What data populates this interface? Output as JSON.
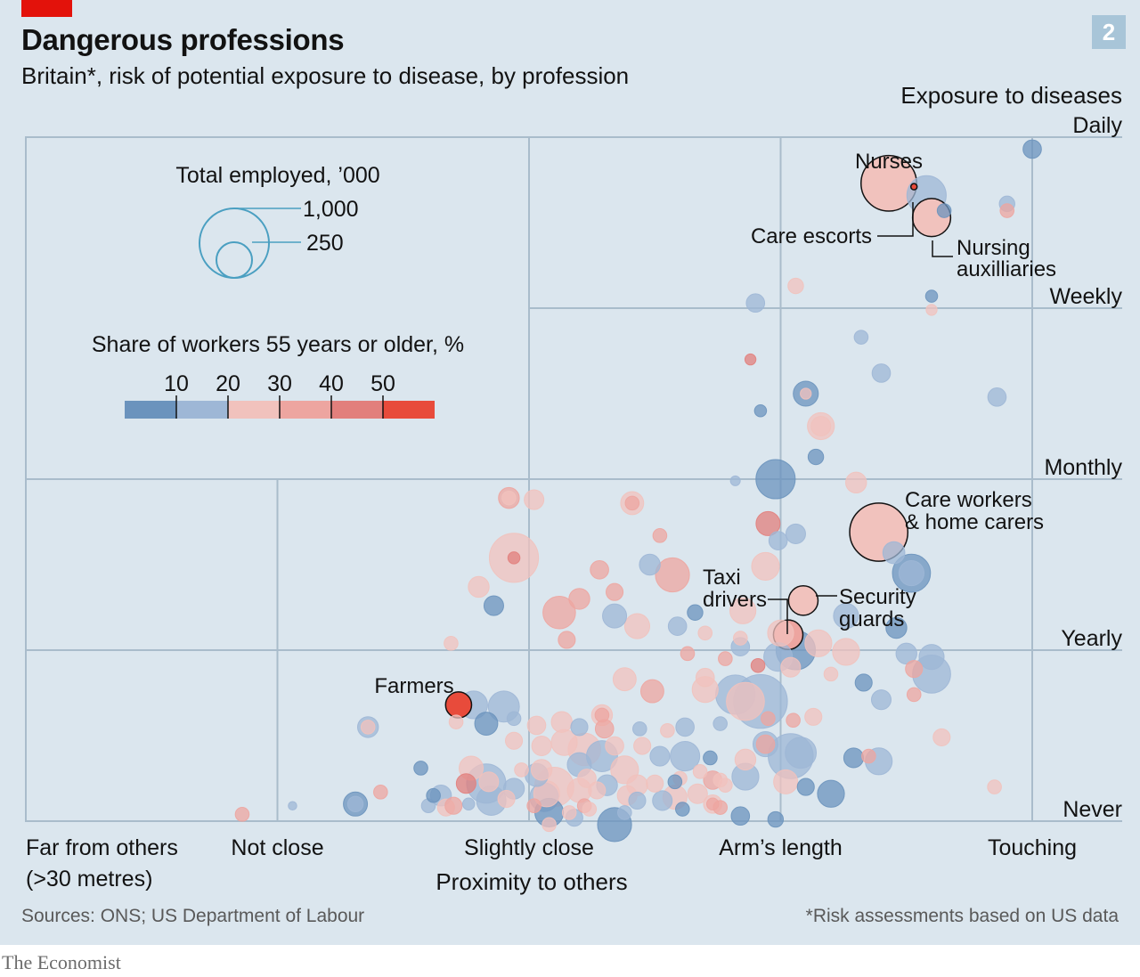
{
  "header": {
    "title": "Dangerous professions",
    "subtitle": "Britain*, risk of potential exposure to disease, by profession",
    "badge": "2"
  },
  "footer": {
    "source": "Sources: ONS; US Department of Labour",
    "footnote": "*Risk assessments based on US data",
    "brand": "The Economist"
  },
  "colors": {
    "background": "#dbe6ee",
    "grid": "#a9bccb",
    "scale": [
      "#6b93bd",
      "#9eb7d6",
      "#f1c2bd",
      "#eda5a0",
      "#e27f7c",
      "#e84b3b"
    ],
    "accent_red": "#e3120b"
  },
  "chart_data": {
    "type": "scatter",
    "title": "Dangerous professions",
    "subtitle": "Britain*, risk of potential exposure to disease, by profession",
    "xlabel": "Proximity to others",
    "ylabel": "Exposure to diseases",
    "x_ticks": [
      "Far from others\n(>30 metres)",
      "Not close",
      "Slightly close",
      "Arm’s length",
      "Touching"
    ],
    "y_ticks": [
      "Never",
      "Yearly",
      "Monthly",
      "Weekly",
      "Daily"
    ],
    "xlim": [
      0,
      4.2
    ],
    "ylim": [
      0,
      4.0
    ],
    "grid": true,
    "size_legend": {
      "title": "Total employed, ’000",
      "values": [
        1000,
        250
      ],
      "labels": [
        "1,000",
        "250"
      ]
    },
    "color_legend": {
      "title": "Share of workers 55 years or older, %",
      "ticks": [
        "10",
        "20",
        "30",
        "40",
        "50"
      ],
      "tick_values": [
        10,
        20,
        30,
        40,
        50
      ]
    },
    "annotations": {
      "nurses": "Nurses",
      "care_escorts": "Care escorts",
      "nursing_aux_1": "Nursing",
      "nursing_aux_2": "auxilliaries",
      "care_workers_1": "Care workers",
      "care_workers_2": "& home carers",
      "taxi_1": "Taxi",
      "taxi_2": "drivers",
      "security_1": "Security",
      "security_2": "guards",
      "farmers": "Farmers"
    },
    "points": [
      {
        "label": "Nurses",
        "x": 3.43,
        "y": 3.73,
        "emp": 640,
        "age": 28
      },
      {
        "label": "Care escorts",
        "x": 3.53,
        "y": 3.71,
        "emp": 4,
        "age": 56
      },
      {
        "label": "Nursing auxilliaries",
        "x": 3.6,
        "y": 3.53,
        "emp": 300,
        "age": 32
      },
      {
        "label": "Care workers & home carers",
        "x": 3.39,
        "y": 1.69,
        "emp": 700,
        "age": 33
      },
      {
        "label": "Security guards",
        "x": 3.09,
        "y": 1.29,
        "emp": 180,
        "age": 26
      },
      {
        "label": "Taxi drivers",
        "x": 3.03,
        "y": 1.09,
        "emp": 180,
        "age": 36
      },
      {
        "label": "Farmers",
        "x": 1.72,
        "y": 0.68,
        "emp": 140,
        "age": 58
      },
      {
        "x": 4.0,
        "y": 3.93,
        "emp": 70,
        "age": 10
      },
      {
        "x": 3.58,
        "y": 3.66,
        "emp": 320,
        "age": 19
      },
      {
        "x": 3.65,
        "y": 3.57,
        "emp": 40,
        "age": 12
      },
      {
        "x": 3.9,
        "y": 3.61,
        "emp": 50,
        "age": 17
      },
      {
        "x": 3.9,
        "y": 3.57,
        "emp": 40,
        "age": 40
      },
      {
        "x": 3.06,
        "y": 3.13,
        "emp": 50,
        "age": 28
      },
      {
        "x": 2.9,
        "y": 3.03,
        "emp": 70,
        "age": 17
      },
      {
        "x": 3.6,
        "y": 3.07,
        "emp": 30,
        "age": 11
      },
      {
        "x": 3.6,
        "y": 2.99,
        "emp": 25,
        "age": 30
      },
      {
        "x": 3.32,
        "y": 2.83,
        "emp": 40,
        "age": 19
      },
      {
        "x": 3.4,
        "y": 2.62,
        "emp": 70,
        "age": 15
      },
      {
        "x": 2.88,
        "y": 2.7,
        "emp": 25,
        "age": 51
      },
      {
        "x": 3.1,
        "y": 2.5,
        "emp": 130,
        "age": 11
      },
      {
        "x": 3.1,
        "y": 2.5,
        "emp": 25,
        "age": 33
      },
      {
        "x": 2.92,
        "y": 2.4,
        "emp": 30,
        "age": 10
      },
      {
        "x": 3.86,
        "y": 2.48,
        "emp": 70,
        "age": 18
      },
      {
        "x": 3.16,
        "y": 2.31,
        "emp": 150,
        "age": 28
      },
      {
        "x": 3.16,
        "y": 2.31,
        "emp": 80,
        "age": 33
      },
      {
        "x": 3.14,
        "y": 2.13,
        "emp": 50,
        "age": 10
      },
      {
        "x": 2.98,
        "y": 2.0,
        "emp": 320,
        "age": 10
      },
      {
        "x": 2.82,
        "y": 1.99,
        "emp": 20,
        "age": 17
      },
      {
        "x": 3.3,
        "y": 1.98,
        "emp": 90,
        "age": 28
      },
      {
        "x": 1.92,
        "y": 1.89,
        "emp": 90,
        "age": 44
      },
      {
        "x": 1.92,
        "y": 1.89,
        "emp": 40,
        "age": 30
      },
      {
        "x": 2.02,
        "y": 1.88,
        "emp": 80,
        "age": 28
      },
      {
        "x": 2.41,
        "y": 1.86,
        "emp": 110,
        "age": 29
      },
      {
        "x": 2.41,
        "y": 1.86,
        "emp": 40,
        "age": 43
      },
      {
        "x": 2.95,
        "y": 1.74,
        "emp": 120,
        "age": 50
      },
      {
        "x": 3.06,
        "y": 1.68,
        "emp": 80,
        "age": 19
      },
      {
        "x": 2.99,
        "y": 1.64,
        "emp": 70,
        "age": 19
      },
      {
        "x": 2.52,
        "y": 1.67,
        "emp": 40,
        "age": 40
      },
      {
        "x": 1.94,
        "y": 1.54,
        "emp": 500,
        "age": 29
      },
      {
        "x": 1.94,
        "y": 1.54,
        "emp": 30,
        "age": 53
      },
      {
        "x": 2.48,
        "y": 1.5,
        "emp": 90,
        "age": 20
      },
      {
        "x": 2.57,
        "y": 1.44,
        "emp": 240,
        "age": 43
      },
      {
        "x": 2.28,
        "y": 1.47,
        "emp": 70,
        "age": 40
      },
      {
        "x": 2.94,
        "y": 1.49,
        "emp": 160,
        "age": 28
      },
      {
        "x": 3.45,
        "y": 1.57,
        "emp": 100,
        "age": 17
      },
      {
        "x": 3.52,
        "y": 1.45,
        "emp": 300,
        "age": 12
      },
      {
        "x": 3.52,
        "y": 1.45,
        "emp": 130,
        "age": 17
      },
      {
        "x": 1.8,
        "y": 1.37,
        "emp": 90,
        "age": 29
      },
      {
        "x": 2.2,
        "y": 1.3,
        "emp": 90,
        "age": 40
      },
      {
        "x": 1.86,
        "y": 1.26,
        "emp": 80,
        "age": 10
      },
      {
        "x": 2.12,
        "y": 1.22,
        "emp": 220,
        "age": 43
      },
      {
        "x": 2.34,
        "y": 1.2,
        "emp": 120,
        "age": 19
      },
      {
        "x": 2.66,
        "y": 1.22,
        "emp": 50,
        "age": 10
      },
      {
        "x": 2.34,
        "y": 1.34,
        "emp": 60,
        "age": 40
      },
      {
        "x": 2.85,
        "y": 1.23,
        "emp": 140,
        "age": 33
      },
      {
        "x": 3.26,
        "y": 1.2,
        "emp": 130,
        "age": 18
      },
      {
        "x": 2.43,
        "y": 1.14,
        "emp": 130,
        "age": 28
      },
      {
        "x": 2.59,
        "y": 1.14,
        "emp": 70,
        "age": 18
      },
      {
        "x": 2.7,
        "y": 1.1,
        "emp": 40,
        "age": 28
      },
      {
        "x": 2.84,
        "y": 1.07,
        "emp": 40,
        "age": 28
      },
      {
        "x": 3.0,
        "y": 1.1,
        "emp": 140,
        "age": 30
      },
      {
        "x": 3.46,
        "y": 1.13,
        "emp": 90,
        "age": 13
      },
      {
        "x": 3.15,
        "y": 1.04,
        "emp": 150,
        "age": 30
      },
      {
        "x": 3.06,
        "y": 1.0,
        "emp": 320,
        "age": 10
      },
      {
        "x": 2.15,
        "y": 1.06,
        "emp": 60,
        "age": 40
      },
      {
        "x": 1.69,
        "y": 1.04,
        "emp": 40,
        "age": 29
      },
      {
        "x": 2.84,
        "y": 1.02,
        "emp": 70,
        "age": 19
      },
      {
        "x": 2.78,
        "y": 0.95,
        "emp": 40,
        "age": 40
      },
      {
        "x": 2.63,
        "y": 0.98,
        "emp": 40,
        "age": 40
      },
      {
        "x": 2.99,
        "y": 0.96,
        "emp": 170,
        "age": 17
      },
      {
        "x": 3.26,
        "y": 0.99,
        "emp": 150,
        "age": 29
      },
      {
        "x": 3.04,
        "y": 0.9,
        "emp": 80,
        "age": 29
      },
      {
        "x": 2.91,
        "y": 0.91,
        "emp": 40,
        "age": 51
      },
      {
        "x": 3.2,
        "y": 0.86,
        "emp": 40,
        "age": 33
      },
      {
        "x": 3.5,
        "y": 0.98,
        "emp": 90,
        "age": 17
      },
      {
        "x": 3.6,
        "y": 0.96,
        "emp": 130,
        "age": 19
      },
      {
        "x": 3.6,
        "y": 0.86,
        "emp": 300,
        "age": 17
      },
      {
        "x": 3.53,
        "y": 0.89,
        "emp": 60,
        "age": 43
      },
      {
        "x": 2.7,
        "y": 0.84,
        "emp": 70,
        "age": 30
      },
      {
        "x": 2.38,
        "y": 0.83,
        "emp": 110,
        "age": 29
      },
      {
        "x": 2.49,
        "y": 0.76,
        "emp": 110,
        "age": 40
      },
      {
        "x": 2.7,
        "y": 0.77,
        "emp": 140,
        "age": 30
      },
      {
        "x": 2.82,
        "y": 0.74,
        "emp": 320,
        "age": 18
      },
      {
        "x": 2.92,
        "y": 0.7,
        "emp": 600,
        "age": 17
      },
      {
        "x": 2.86,
        "y": 0.7,
        "emp": 300,
        "age": 28
      },
      {
        "x": 2.95,
        "y": 0.6,
        "emp": 40,
        "age": 40
      },
      {
        "x": 3.33,
        "y": 0.81,
        "emp": 60,
        "age": 14
      },
      {
        "x": 3.4,
        "y": 0.71,
        "emp": 80,
        "age": 19
      },
      {
        "x": 3.53,
        "y": 0.74,
        "emp": 40,
        "age": 43
      },
      {
        "x": 3.13,
        "y": 0.61,
        "emp": 60,
        "age": 29
      },
      {
        "x": 3.05,
        "y": 0.59,
        "emp": 40,
        "age": 40
      },
      {
        "x": 2.29,
        "y": 0.62,
        "emp": 40,
        "age": 43
      },
      {
        "x": 2.29,
        "y": 0.62,
        "emp": 90,
        "age": 30
      },
      {
        "x": 1.78,
        "y": 0.68,
        "emp": 160,
        "age": 18
      },
      {
        "x": 1.9,
        "y": 0.67,
        "emp": 200,
        "age": 18
      },
      {
        "x": 1.83,
        "y": 0.57,
        "emp": 110,
        "age": 11
      },
      {
        "x": 1.71,
        "y": 0.58,
        "emp": 40,
        "age": 30
      },
      {
        "x": 1.36,
        "y": 0.55,
        "emp": 90,
        "age": 19
      },
      {
        "x": 1.36,
        "y": 0.55,
        "emp": 40,
        "age": 30
      },
      {
        "x": 1.94,
        "y": 0.6,
        "emp": 40,
        "age": 19
      },
      {
        "x": 2.03,
        "y": 0.56,
        "emp": 70,
        "age": 29
      },
      {
        "x": 2.13,
        "y": 0.58,
        "emp": 90,
        "age": 28
      },
      {
        "x": 2.2,
        "y": 0.55,
        "emp": 60,
        "age": 18
      },
      {
        "x": 2.3,
        "y": 0.54,
        "emp": 70,
        "age": 40
      },
      {
        "x": 2.44,
        "y": 0.54,
        "emp": 40,
        "age": 19
      },
      {
        "x": 2.55,
        "y": 0.53,
        "emp": 40,
        "age": 29
      },
      {
        "x": 2.62,
        "y": 0.55,
        "emp": 70,
        "age": 18
      },
      {
        "x": 2.76,
        "y": 0.57,
        "emp": 40,
        "age": 18
      },
      {
        "x": 2.94,
        "y": 0.45,
        "emp": 130,
        "age": 18
      },
      {
        "x": 2.94,
        "y": 0.45,
        "emp": 70,
        "age": 43
      },
      {
        "x": 1.94,
        "y": 0.47,
        "emp": 60,
        "age": 33
      },
      {
        "x": 2.05,
        "y": 0.44,
        "emp": 80,
        "age": 29
      },
      {
        "x": 2.14,
        "y": 0.46,
        "emp": 140,
        "age": 28
      },
      {
        "x": 2.22,
        "y": 0.42,
        "emp": 220,
        "age": 33
      },
      {
        "x": 2.29,
        "y": 0.38,
        "emp": 200,
        "age": 18
      },
      {
        "x": 2.34,
        "y": 0.44,
        "emp": 70,
        "age": 29
      },
      {
        "x": 2.45,
        "y": 0.44,
        "emp": 60,
        "age": 30
      },
      {
        "x": 2.52,
        "y": 0.38,
        "emp": 80,
        "age": 17
      },
      {
        "x": 2.2,
        "y": 0.33,
        "emp": 120,
        "age": 18
      },
      {
        "x": 2.62,
        "y": 0.38,
        "emp": 180,
        "age": 18
      },
      {
        "x": 2.72,
        "y": 0.37,
        "emp": 40,
        "age": 10
      },
      {
        "x": 2.86,
        "y": 0.36,
        "emp": 90,
        "age": 30
      },
      {
        "x": 3.04,
        "y": 0.38,
        "emp": 420,
        "age": 18
      },
      {
        "x": 3.08,
        "y": 0.4,
        "emp": 200,
        "age": 18
      },
      {
        "x": 3.29,
        "y": 0.37,
        "emp": 80,
        "age": 11
      },
      {
        "x": 3.39,
        "y": 0.35,
        "emp": 150,
        "age": 18
      },
      {
        "x": 3.35,
        "y": 0.38,
        "emp": 40,
        "age": 40
      },
      {
        "x": 3.64,
        "y": 0.49,
        "emp": 60,
        "age": 29
      },
      {
        "x": 3.85,
        "y": 0.2,
        "emp": 40,
        "age": 30
      },
      {
        "x": 1.57,
        "y": 0.31,
        "emp": 40,
        "age": 10
      },
      {
        "x": 1.77,
        "y": 0.31,
        "emp": 120,
        "age": 29
      },
      {
        "x": 1.84,
        "y": 0.23,
        "emp": 80,
        "age": 29
      },
      {
        "x": 1.75,
        "y": 0.22,
        "emp": 80,
        "age": 53
      },
      {
        "x": 1.83,
        "y": 0.22,
        "emp": 320,
        "age": 18
      },
      {
        "x": 1.85,
        "y": 0.12,
        "emp": 180,
        "age": 19
      },
      {
        "x": 1.91,
        "y": 0.13,
        "emp": 60,
        "age": 29
      },
      {
        "x": 2.03,
        "y": 0.27,
        "emp": 110,
        "age": 18
      },
      {
        "x": 2.06,
        "y": 0.14,
        "emp": 170,
        "age": 19
      },
      {
        "x": 2.1,
        "y": 0.2,
        "emp": 320,
        "age": 30
      },
      {
        "x": 2.07,
        "y": 0.16,
        "emp": 140,
        "age": 28
      },
      {
        "x": 2.2,
        "y": 0.18,
        "emp": 120,
        "age": 28
      },
      {
        "x": 2.22,
        "y": 0.09,
        "emp": 40,
        "age": 43
      },
      {
        "x": 2.27,
        "y": 0.18,
        "emp": 60,
        "age": 28
      },
      {
        "x": 2.31,
        "y": 0.21,
        "emp": 90,
        "age": 18
      },
      {
        "x": 2.24,
        "y": 0.07,
        "emp": 40,
        "age": 30
      },
      {
        "x": 2.23,
        "y": 0.25,
        "emp": 70,
        "age": 30
      },
      {
        "x": 2.39,
        "y": 0.15,
        "emp": 80,
        "age": 28
      },
      {
        "x": 2.43,
        "y": 0.21,
        "emp": 90,
        "age": 28
      },
      {
        "x": 2.5,
        "y": 0.22,
        "emp": 60,
        "age": 30
      },
      {
        "x": 2.43,
        "y": 0.12,
        "emp": 60,
        "age": 18
      },
      {
        "x": 2.38,
        "y": 0.05,
        "emp": 40,
        "age": 19
      },
      {
        "x": 2.53,
        "y": 0.12,
        "emp": 80,
        "age": 18
      },
      {
        "x": 2.58,
        "y": 0.14,
        "emp": 120,
        "age": 29
      },
      {
        "x": 2.67,
        "y": 0.16,
        "emp": 80,
        "age": 28
      },
      {
        "x": 2.6,
        "y": 0.25,
        "emp": 40,
        "age": 28
      },
      {
        "x": 2.61,
        "y": 0.07,
        "emp": 40,
        "age": 10
      },
      {
        "x": 2.73,
        "y": 0.24,
        "emp": 70,
        "age": 40
      },
      {
        "x": 2.78,
        "y": 0.21,
        "emp": 40,
        "age": 29
      },
      {
        "x": 2.68,
        "y": 0.29,
        "emp": 40,
        "age": 28
      },
      {
        "x": 2.58,
        "y": 0.23,
        "emp": 40,
        "age": 11
      },
      {
        "x": 2.73,
        "y": 0.1,
        "emp": 70,
        "age": 30
      },
      {
        "x": 2.76,
        "y": 0.08,
        "emp": 40,
        "age": 43
      },
      {
        "x": 2.73,
        "y": 0.1,
        "emp": 30,
        "age": 43
      },
      {
        "x": 2.76,
        "y": 0.24,
        "emp": 40,
        "age": 28
      },
      {
        "x": 2.86,
        "y": 0.26,
        "emp": 150,
        "age": 18
      },
      {
        "x": 2.84,
        "y": 0.03,
        "emp": 70,
        "age": 10
      },
      {
        "x": 3.02,
        "y": 0.23,
        "emp": 120,
        "age": 28
      },
      {
        "x": 3.1,
        "y": 0.2,
        "emp": 60,
        "age": 10
      },
      {
        "x": 3.2,
        "y": 0.16,
        "emp": 150,
        "age": 11
      },
      {
        "x": 2.38,
        "y": 0.3,
        "emp": 160,
        "age": 28
      },
      {
        "x": 2.05,
        "y": 0.3,
        "emp": 90,
        "age": 28
      },
      {
        "x": 1.97,
        "y": 0.3,
        "emp": 40,
        "age": 29
      },
      {
        "x": 1.94,
        "y": 0.19,
        "emp": 90,
        "age": 18
      },
      {
        "x": 2.02,
        "y": 0.09,
        "emp": 40,
        "age": 40
      },
      {
        "x": 2.16,
        "y": 0.05,
        "emp": 40,
        "age": 30
      },
      {
        "x": 2.08,
        "y": 0.05,
        "emp": 170,
        "age": 10
      },
      {
        "x": 1.6,
        "y": 0.09,
        "emp": 40,
        "age": 17
      },
      {
        "x": 1.62,
        "y": 0.15,
        "emp": 40,
        "age": 10
      },
      {
        "x": 1.65,
        "y": 0.15,
        "emp": 90,
        "age": 18
      },
      {
        "x": 1.67,
        "y": 0.08,
        "emp": 60,
        "age": 29
      },
      {
        "x": 1.7,
        "y": 0.09,
        "emp": 60,
        "age": 40
      },
      {
        "x": 1.76,
        "y": 0.1,
        "emp": 30,
        "age": 18
      },
      {
        "x": 1.31,
        "y": 0.1,
        "emp": 120,
        "age": 10
      },
      {
        "x": 1.31,
        "y": 0.1,
        "emp": 50,
        "age": 18
      },
      {
        "x": 1.41,
        "y": 0.17,
        "emp": 40,
        "age": 40
      },
      {
        "x": 0.86,
        "y": 0.04,
        "emp": 40,
        "age": 40
      },
      {
        "x": 1.06,
        "y": 0.09,
        "emp": 15,
        "age": 17
      },
      {
        "x": 2.98,
        "y": 0.01,
        "emp": 50,
        "age": 10
      },
      {
        "x": 2.34,
        "y": -0.02,
        "emp": 240,
        "age": 10
      },
      {
        "x": 2.18,
        "y": 0.02,
        "emp": 60,
        "age": 17
      },
      {
        "x": 2.08,
        "y": -0.02,
        "emp": 40,
        "age": 33
      }
    ]
  }
}
